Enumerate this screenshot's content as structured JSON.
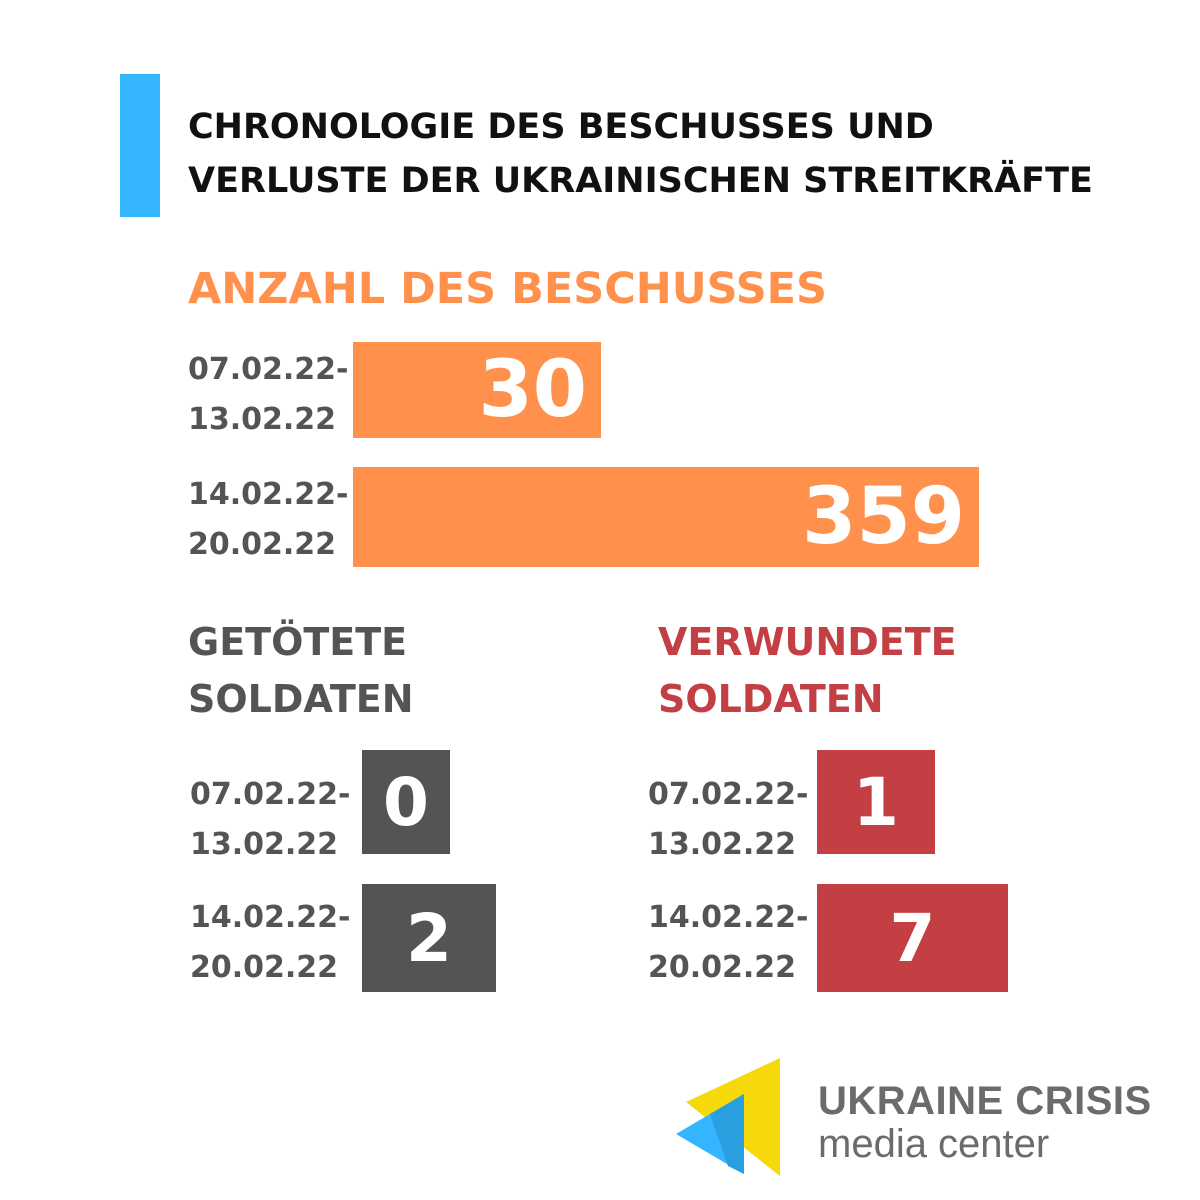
{
  "title": {
    "line1": "CHRONOLOGIE DES BESCHUSSES UND",
    "line2": "VERLUSTE DER UKRAINISCHEN STREITKRÄFTE"
  },
  "colors": {
    "accent": "#33b5ff",
    "shelling": "#ff914d",
    "killed": "#545454",
    "wounded": "#c33f44"
  },
  "chart_data": [
    {
      "type": "bar",
      "title": "ANZAHL DES BESCHUSSES",
      "categories": [
        "07.02.22-\n13.02.22",
        "14.02.22-\n20.02.22"
      ],
      "category_lines": [
        [
          "07.02.22-",
          "13.02.22"
        ],
        [
          "14.02.22-",
          "20.02.22"
        ]
      ],
      "values": [
        30,
        359
      ],
      "value_labels": [
        "30",
        "359"
      ],
      "orientation": "horizontal"
    },
    {
      "type": "bar",
      "title_lines": [
        "GETÖTETE",
        "SOLDATEN"
      ],
      "category_lines": [
        [
          "07.02.22-",
          "13.02.22"
        ],
        [
          "14.02.22-",
          "20.02.22"
        ]
      ],
      "values": [
        0,
        2
      ],
      "value_labels": [
        "0",
        "2"
      ],
      "orientation": "horizontal"
    },
    {
      "type": "bar",
      "title_lines": [
        "VERWUNDETE",
        "SOLDATEN"
      ],
      "category_lines": [
        [
          "07.02.22-",
          "13.02.22"
        ],
        [
          "14.02.22-",
          "20.02.22"
        ]
      ],
      "values": [
        1,
        7
      ],
      "value_labels": [
        "1",
        "7"
      ],
      "orientation": "horizontal"
    }
  ],
  "logo": {
    "line1": "UKRAINE CRISIS",
    "line2": "media center"
  }
}
